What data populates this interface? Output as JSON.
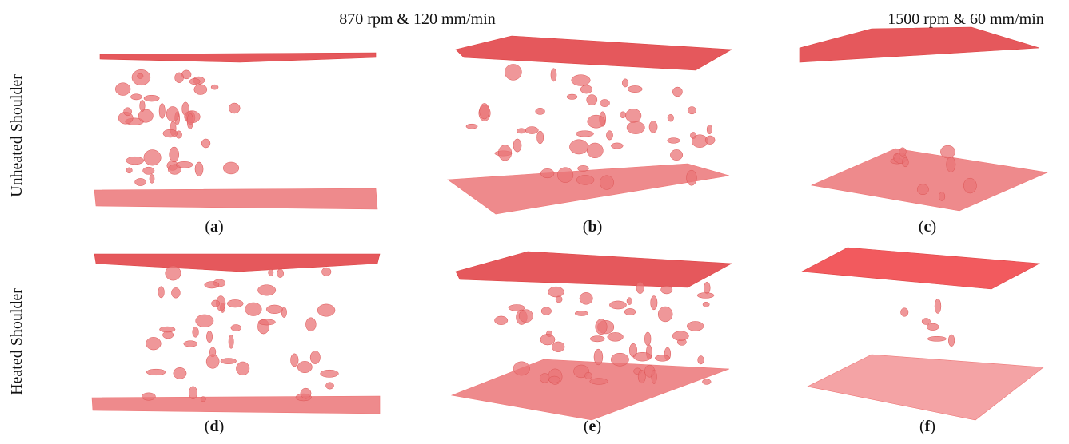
{
  "column_headers": [
    "870 rpm & 120 mm/min",
    "1500 rpm & 60 mm/min"
  ],
  "row_labels": [
    "Unheated Shoulder",
    "Heated Shoulder"
  ],
  "label_open": "(",
  "label_close": ")",
  "panels": [
    {
      "letter": "a"
    },
    {
      "letter": "b"
    },
    {
      "letter": "c"
    },
    {
      "letter": "d"
    },
    {
      "letter": "e"
    },
    {
      "letter": "f"
    }
  ]
}
